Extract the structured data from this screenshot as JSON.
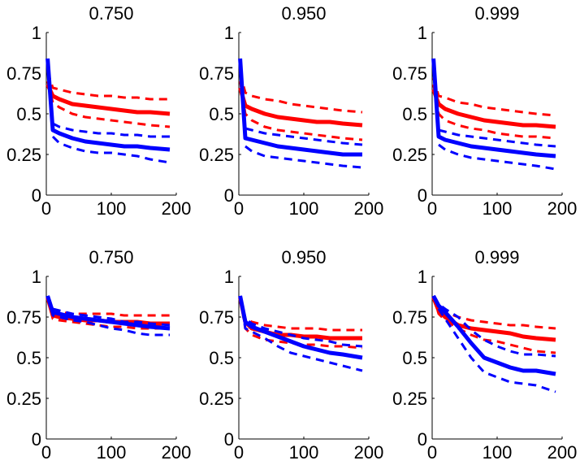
{
  "chart_data": [
    {
      "type": "line",
      "title": "0.750",
      "xlim": [
        0,
        200
      ],
      "ylim": [
        0,
        1
      ],
      "xticks": [
        "0",
        "100",
        "200"
      ],
      "yticks": [
        "0",
        "0.25",
        "0.5",
        "0.75",
        "1"
      ],
      "grid": false,
      "x": [
        2,
        10,
        20,
        40,
        60,
        80,
        100,
        120,
        140,
        160,
        190
      ],
      "series": [
        {
          "color": "#ff0000",
          "style": "solid",
          "values": [
            0.68,
            0.61,
            0.59,
            0.56,
            0.55,
            0.54,
            0.53,
            0.52,
            0.51,
            0.51,
            0.5
          ]
        },
        {
          "color": "#ff0000",
          "style": "dashed",
          "values": [
            0.76,
            0.66,
            0.65,
            0.63,
            0.62,
            0.61,
            0.61,
            0.6,
            0.6,
            0.59,
            0.59
          ]
        },
        {
          "color": "#ff0000",
          "style": "dashed",
          "values": [
            0.7,
            0.57,
            0.54,
            0.5,
            0.48,
            0.47,
            0.46,
            0.45,
            0.44,
            0.43,
            0.42
          ]
        },
        {
          "color": "#0000ff",
          "style": "solid",
          "values": [
            0.84,
            0.4,
            0.38,
            0.35,
            0.33,
            0.32,
            0.31,
            0.3,
            0.3,
            0.29,
            0.28
          ]
        },
        {
          "color": "#0000ff",
          "style": "dashed",
          "values": [
            null,
            0.44,
            0.42,
            0.4,
            0.39,
            0.38,
            0.38,
            0.37,
            0.37,
            0.36,
            0.36
          ]
        },
        {
          "color": "#0000ff",
          "style": "dashed",
          "values": [
            null,
            0.36,
            0.32,
            0.29,
            0.27,
            0.26,
            0.26,
            0.25,
            0.24,
            0.22,
            0.2
          ]
        }
      ]
    },
    {
      "type": "line",
      "title": "0.950",
      "xlim": [
        0,
        200
      ],
      "ylim": [
        0,
        1
      ],
      "xticks": [
        "0",
        "100",
        "200"
      ],
      "yticks": [
        "0",
        "0.25",
        "0.5",
        "0.75",
        "1"
      ],
      "grid": false,
      "x": [
        2,
        10,
        20,
        40,
        60,
        80,
        100,
        120,
        140,
        160,
        190
      ],
      "series": [
        {
          "color": "#ff0000",
          "style": "solid",
          "values": [
            0.66,
            0.55,
            0.53,
            0.5,
            0.48,
            0.47,
            0.46,
            0.45,
            0.45,
            0.44,
            0.43
          ]
        },
        {
          "color": "#ff0000",
          "style": "dashed",
          "values": [
            0.75,
            0.63,
            0.61,
            0.59,
            0.58,
            0.56,
            0.55,
            0.54,
            0.53,
            0.52,
            0.51
          ]
        },
        {
          "color": "#ff0000",
          "style": "dashed",
          "values": [
            0.7,
            0.5,
            0.46,
            0.42,
            0.4,
            0.39,
            0.38,
            0.37,
            0.36,
            0.35,
            0.34
          ]
        },
        {
          "color": "#0000ff",
          "style": "solid",
          "values": [
            0.84,
            0.35,
            0.34,
            0.32,
            0.3,
            0.29,
            0.28,
            0.27,
            0.26,
            0.25,
            0.25
          ]
        },
        {
          "color": "#0000ff",
          "style": "dashed",
          "values": [
            null,
            0.41,
            0.4,
            0.38,
            0.37,
            0.36,
            0.35,
            0.34,
            0.33,
            0.32,
            0.31
          ]
        },
        {
          "color": "#0000ff",
          "style": "dashed",
          "values": [
            null,
            0.3,
            0.27,
            0.24,
            0.23,
            0.22,
            0.21,
            0.2,
            0.19,
            0.18,
            0.17
          ]
        }
      ]
    },
    {
      "type": "line",
      "title": "0.999",
      "xlim": [
        0,
        200
      ],
      "ylim": [
        0,
        1
      ],
      "xticks": [
        "0",
        "100",
        "200"
      ],
      "yticks": [
        "0",
        "0.25",
        "0.5",
        "0.75",
        "1"
      ],
      "grid": false,
      "x": [
        2,
        10,
        20,
        40,
        60,
        80,
        100,
        120,
        140,
        160,
        190
      ],
      "series": [
        {
          "color": "#ff0000",
          "style": "solid",
          "values": [
            0.65,
            0.56,
            0.53,
            0.5,
            0.48,
            0.46,
            0.45,
            0.44,
            0.43,
            0.43,
            0.42
          ]
        },
        {
          "color": "#ff0000",
          "style": "dashed",
          "values": [
            0.72,
            0.61,
            0.6,
            0.57,
            0.56,
            0.54,
            0.53,
            0.52,
            0.51,
            0.5,
            0.49
          ]
        },
        {
          "color": "#ff0000",
          "style": "dashed",
          "values": [
            0.68,
            0.5,
            0.46,
            0.43,
            0.41,
            0.4,
            0.38,
            0.37,
            0.36,
            0.36,
            0.35
          ]
        },
        {
          "color": "#0000ff",
          "style": "solid",
          "values": [
            0.84,
            0.36,
            0.34,
            0.32,
            0.3,
            0.29,
            0.28,
            0.27,
            0.26,
            0.25,
            0.24
          ]
        },
        {
          "color": "#0000ff",
          "style": "dashed",
          "values": [
            null,
            0.4,
            0.39,
            0.37,
            0.36,
            0.35,
            0.34,
            0.33,
            0.32,
            0.31,
            0.3
          ]
        },
        {
          "color": "#0000ff",
          "style": "dashed",
          "values": [
            null,
            0.31,
            0.28,
            0.25,
            0.23,
            0.22,
            0.21,
            0.2,
            0.19,
            0.18,
            0.16
          ]
        }
      ]
    },
    {
      "type": "line",
      "title": "0.750",
      "xlim": [
        0,
        200
      ],
      "ylim": [
        0,
        1
      ],
      "xticks": [
        "0",
        "100",
        "200"
      ],
      "yticks": [
        "0",
        "0.25",
        "0.5",
        "0.75",
        "1"
      ],
      "grid": false,
      "x": [
        2,
        10,
        20,
        40,
        60,
        80,
        100,
        120,
        140,
        160,
        190
      ],
      "series": [
        {
          "color": "#ff0000",
          "style": "solid",
          "values": [
            0.87,
            0.76,
            0.75,
            0.74,
            0.73,
            0.73,
            0.72,
            0.72,
            0.72,
            0.71,
            0.71
          ]
        },
        {
          "color": "#ff0000",
          "style": "dashed",
          "values": [
            0.87,
            0.78,
            0.78,
            0.77,
            0.77,
            0.77,
            0.77,
            0.76,
            0.76,
            0.76,
            0.76
          ]
        },
        {
          "color": "#ff0000",
          "style": "dashed",
          "values": [
            0.87,
            0.74,
            0.73,
            0.72,
            0.71,
            0.7,
            0.69,
            0.69,
            0.68,
            0.68,
            0.68
          ]
        },
        {
          "color": "#0000ff",
          "style": "solid",
          "values": [
            0.88,
            0.78,
            0.77,
            0.75,
            0.74,
            0.73,
            0.72,
            0.71,
            0.7,
            0.69,
            0.68
          ]
        },
        {
          "color": "#0000ff",
          "style": "dashed",
          "values": [
            0.88,
            0.8,
            0.79,
            0.77,
            0.76,
            0.75,
            0.74,
            0.72,
            0.72,
            0.71,
            0.7
          ]
        },
        {
          "color": "#0000ff",
          "style": "dashed",
          "values": [
            0.88,
            0.76,
            0.75,
            0.73,
            0.72,
            0.7,
            0.68,
            0.67,
            0.65,
            0.64,
            0.64
          ]
        }
      ]
    },
    {
      "type": "line",
      "title": "0.950",
      "xlim": [
        0,
        200
      ],
      "ylim": [
        0,
        1
      ],
      "xticks": [
        "0",
        "100",
        "200"
      ],
      "yticks": [
        "0",
        "0.25",
        "0.5",
        "0.75",
        "1"
      ],
      "grid": false,
      "x": [
        2,
        10,
        20,
        40,
        60,
        80,
        100,
        120,
        140,
        160,
        190
      ],
      "series": [
        {
          "color": "#ff0000",
          "style": "solid",
          "values": [
            0.87,
            0.72,
            0.68,
            0.66,
            0.64,
            0.64,
            0.63,
            0.63,
            0.62,
            0.62,
            0.62
          ]
        },
        {
          "color": "#ff0000",
          "style": "dashed",
          "values": [
            0.87,
            0.74,
            0.72,
            0.7,
            0.69,
            0.68,
            0.68,
            0.68,
            0.67,
            0.67,
            0.67
          ]
        },
        {
          "color": "#ff0000",
          "style": "dashed",
          "values": [
            0.87,
            0.68,
            0.64,
            0.61,
            0.6,
            0.59,
            0.58,
            0.58,
            0.57,
            0.57,
            0.56
          ]
        },
        {
          "color": "#0000ff",
          "style": "solid",
          "values": [
            0.88,
            0.72,
            0.69,
            0.66,
            0.63,
            0.6,
            0.57,
            0.55,
            0.53,
            0.52,
            0.5
          ]
        },
        {
          "color": "#0000ff",
          "style": "dashed",
          "values": [
            0.88,
            0.74,
            0.71,
            0.68,
            0.66,
            0.64,
            0.62,
            0.61,
            0.6,
            0.58,
            0.57
          ]
        },
        {
          "color": "#0000ff",
          "style": "dashed",
          "values": [
            0.88,
            0.68,
            0.66,
            0.62,
            0.57,
            0.53,
            0.51,
            0.49,
            0.47,
            0.45,
            0.42
          ]
        }
      ]
    },
    {
      "type": "line",
      "title": "0.999",
      "xlim": [
        0,
        200
      ],
      "ylim": [
        0,
        1
      ],
      "xticks": [
        "0",
        "100",
        "200"
      ],
      "yticks": [
        "0",
        "0.25",
        "0.5",
        "0.75",
        "1"
      ],
      "grid": false,
      "x": [
        2,
        10,
        20,
        40,
        60,
        80,
        100,
        120,
        140,
        160,
        190
      ],
      "series": [
        {
          "color": "#ff0000",
          "style": "solid",
          "values": [
            0.87,
            0.79,
            0.75,
            0.7,
            0.68,
            0.67,
            0.66,
            0.65,
            0.63,
            0.62,
            0.61
          ]
        },
        {
          "color": "#ff0000",
          "style": "dashed",
          "values": [
            0.87,
            0.81,
            0.78,
            0.75,
            0.73,
            0.72,
            0.71,
            0.7,
            0.7,
            0.69,
            0.68
          ]
        },
        {
          "color": "#ff0000",
          "style": "dashed",
          "values": [
            0.87,
            0.77,
            0.73,
            0.68,
            0.64,
            0.61,
            0.6,
            0.58,
            0.56,
            0.54,
            0.53
          ]
        },
        {
          "color": "#0000ff",
          "style": "solid",
          "values": [
            0.88,
            0.82,
            0.78,
            0.69,
            0.59,
            0.5,
            0.47,
            0.44,
            0.42,
            0.42,
            0.4
          ]
        },
        {
          "color": "#0000ff",
          "style": "dashed",
          "values": [
            0.88,
            0.83,
            0.8,
            0.75,
            0.67,
            0.61,
            0.57,
            0.54,
            0.52,
            0.52,
            0.51
          ]
        },
        {
          "color": "#0000ff",
          "style": "dashed",
          "values": [
            0.88,
            0.8,
            0.74,
            0.62,
            0.5,
            0.41,
            0.38,
            0.35,
            0.34,
            0.33,
            0.29
          ]
        }
      ]
    }
  ]
}
